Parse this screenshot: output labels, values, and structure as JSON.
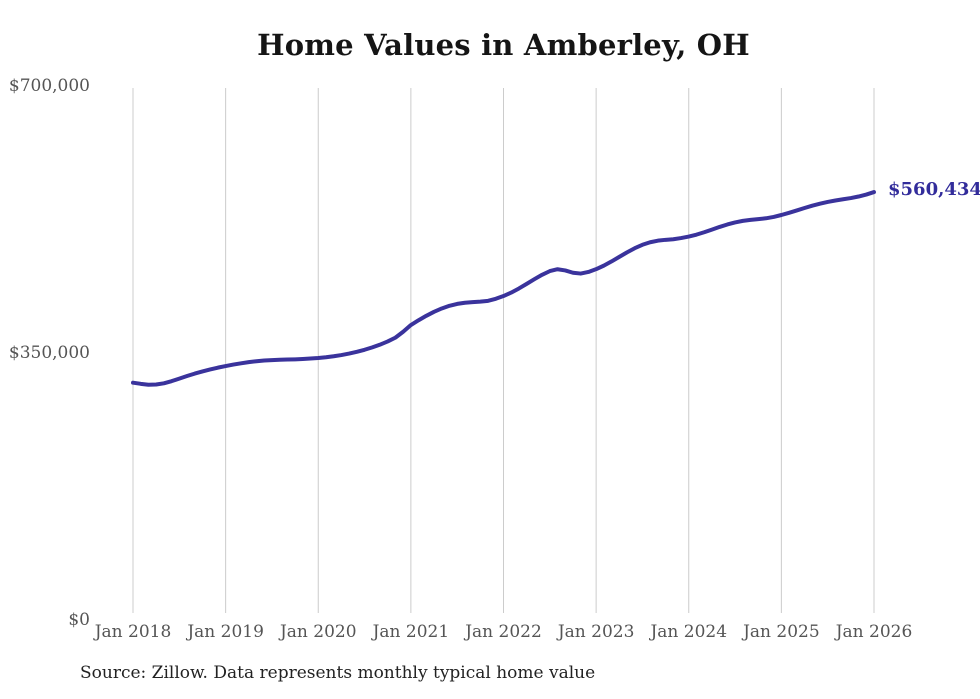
{
  "title": "Home Values in Amberley, OH",
  "end_label": "$560,434",
  "source_note": "Source: Zillow. Data represents monthly typical home value",
  "colors": {
    "line": "#3a339c",
    "end_label": "#322c9b",
    "grid": "#cccccc",
    "axis_text": "#555555",
    "title_text": "#151515",
    "source_text": "#222222"
  },
  "chart_data": {
    "type": "line",
    "title": "Home Values in Amberley, OH",
    "xlabel": "",
    "ylabel": "",
    "interval": "monthly",
    "x_start": "Jan 2018",
    "x_end": "Jan 2026",
    "ylim": [
      0,
      700000
    ],
    "grid": "vertical-only",
    "legend": "none",
    "x_tick_labels": [
      "Jan 2018",
      "Jan 2019",
      "Jan 2020",
      "Jan 2021",
      "Jan 2022",
      "Jan 2023",
      "Jan 2024",
      "Jan 2025",
      "Jan 2026"
    ],
    "y_ticks": [
      {
        "label": "$0",
        "value": 0
      },
      {
        "label": "$350,000",
        "value": 350000
      },
      {
        "label": "$700,000",
        "value": 700000
      }
    ],
    "end_value": 560434,
    "series": [
      {
        "name": "Typical home value",
        "values": [
          310800,
          309300,
          308100,
          308400,
          310000,
          312800,
          316100,
          319500,
          322700,
          325500,
          328100,
          330500,
          332600,
          334500,
          336200,
          337700,
          338900,
          339800,
          340400,
          340800,
          341100,
          341400,
          341800,
          342400,
          343100,
          344100,
          345400,
          347000,
          348900,
          351200,
          353900,
          357000,
          360600,
          364800,
          369800,
          377500,
          386300,
          392600,
          398400,
          403600,
          408000,
          411500,
          414000,
          415500,
          416300,
          416900,
          418000,
          420700,
          424300,
          428800,
          434200,
          440200,
          446300,
          452100,
          456900,
          459400,
          457800,
          454800,
          453700,
          455800,
          459500,
          464100,
          469600,
          475600,
          481500,
          486900,
          491400,
          494700,
          496800,
          497900,
          498700,
          500200,
          502200,
          504700,
          507800,
          511300,
          514800,
          518000,
          520700,
          522700,
          524000,
          525000,
          526100,
          527900,
          530400,
          533300,
          536400,
          539600,
          542600,
          545200,
          547500,
          549400,
          551000,
          552600,
          554600,
          557200,
          560434
        ]
      }
    ]
  }
}
